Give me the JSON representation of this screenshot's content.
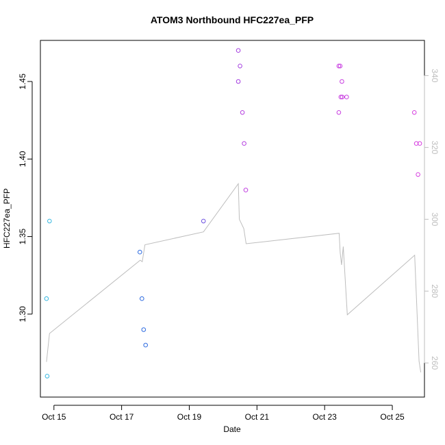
{
  "chart_data": {
    "type": "scatter",
    "title": "ATOM3 Northbound HFC227ea_PFP",
    "xlabel": "Date",
    "ylabel": "HFC227ea_PFP",
    "x_tick_labels": [
      "Oct 15",
      "Oct 17",
      "Oct 19",
      "Oct 21",
      "Oct 23",
      "Oct 25"
    ],
    "x_tick_days": [
      15,
      17,
      19,
      21,
      23,
      25
    ],
    "xlim": [
      14.6,
      25.95
    ],
    "ylim": [
      1.2465,
      1.4765
    ],
    "y_ticks": [
      1.3,
      1.35,
      1.4,
      1.45
    ],
    "y_tick_labels": [
      "1.30",
      "1.35",
      "1.40",
      "1.45"
    ],
    "y2lim": [
      250.5,
      349.8
    ],
    "y2_ticks": [
      260,
      280,
      300,
      320,
      340
    ],
    "y2_tick_labels": [
      "260",
      "280",
      "300",
      "320",
      "340"
    ],
    "points": [
      {
        "day": 14.78,
        "value": 1.31,
        "color": "#35b7e0"
      },
      {
        "day": 14.8,
        "value": 1.26,
        "color": "#35b7e0"
      },
      {
        "day": 14.87,
        "value": 1.36,
        "color": "#35b7e0"
      },
      {
        "day": 17.54,
        "value": 1.34,
        "color": "#2d6be0"
      },
      {
        "day": 17.6,
        "value": 1.31,
        "color": "#2d6be0"
      },
      {
        "day": 17.65,
        "value": 1.29,
        "color": "#2d6be0"
      },
      {
        "day": 17.71,
        "value": 1.28,
        "color": "#2d6be0"
      },
      {
        "day": 19.42,
        "value": 1.36,
        "color": "#6b4fe0"
      },
      {
        "day": 20.45,
        "value": 1.47,
        "color": "#a43ee0"
      },
      {
        "day": 20.45,
        "value": 1.45,
        "color": "#a43ee0"
      },
      {
        "day": 20.5,
        "value": 1.46,
        "color": "#a43ee0"
      },
      {
        "day": 20.57,
        "value": 1.43,
        "color": "#b43ee0"
      },
      {
        "day": 20.62,
        "value": 1.41,
        "color": "#b43ee0"
      },
      {
        "day": 20.67,
        "value": 1.38,
        "color": "#c03ee0"
      },
      {
        "day": 23.42,
        "value": 1.46,
        "color": "#c83ee0"
      },
      {
        "day": 23.46,
        "value": 1.46,
        "color": "#c83ee0"
      },
      {
        "day": 23.48,
        "value": 1.44,
        "color": "#c83ee0"
      },
      {
        "day": 23.42,
        "value": 1.43,
        "color": "#c83ee0"
      },
      {
        "day": 23.51,
        "value": 1.45,
        "color": "#c83ee0"
      },
      {
        "day": 23.52,
        "value": 1.44,
        "color": "#c83ee0"
      },
      {
        "day": 23.65,
        "value": 1.44,
        "color": "#c83ee0"
      },
      {
        "day": 25.65,
        "value": 1.43,
        "color": "#d63ee0"
      },
      {
        "day": 25.71,
        "value": 1.41,
        "color": "#d63ee0"
      },
      {
        "day": 25.76,
        "value": 1.39,
        "color": "#d63ee0"
      },
      {
        "day": 25.81,
        "value": 1.41,
        "color": "#d63ee0"
      }
    ],
    "line": {
      "color": "#bdbdbd",
      "axis": "right",
      "x": [
        14.78,
        14.87,
        17.55,
        17.61,
        17.69,
        19.42,
        20.45,
        20.48,
        20.61,
        20.68,
        23.43,
        23.46,
        23.5,
        23.55,
        23.67,
        25.66,
        25.79,
        25.84
      ],
      "y": [
        260.3,
        268.2,
        288.6,
        288.2,
        292.9,
        296.5,
        309.9,
        300.0,
        297.4,
        293.2,
        296.1,
        290.7,
        287.3,
        292.4,
        273.4,
        290.0,
        260.5,
        257.4
      ]
    }
  }
}
